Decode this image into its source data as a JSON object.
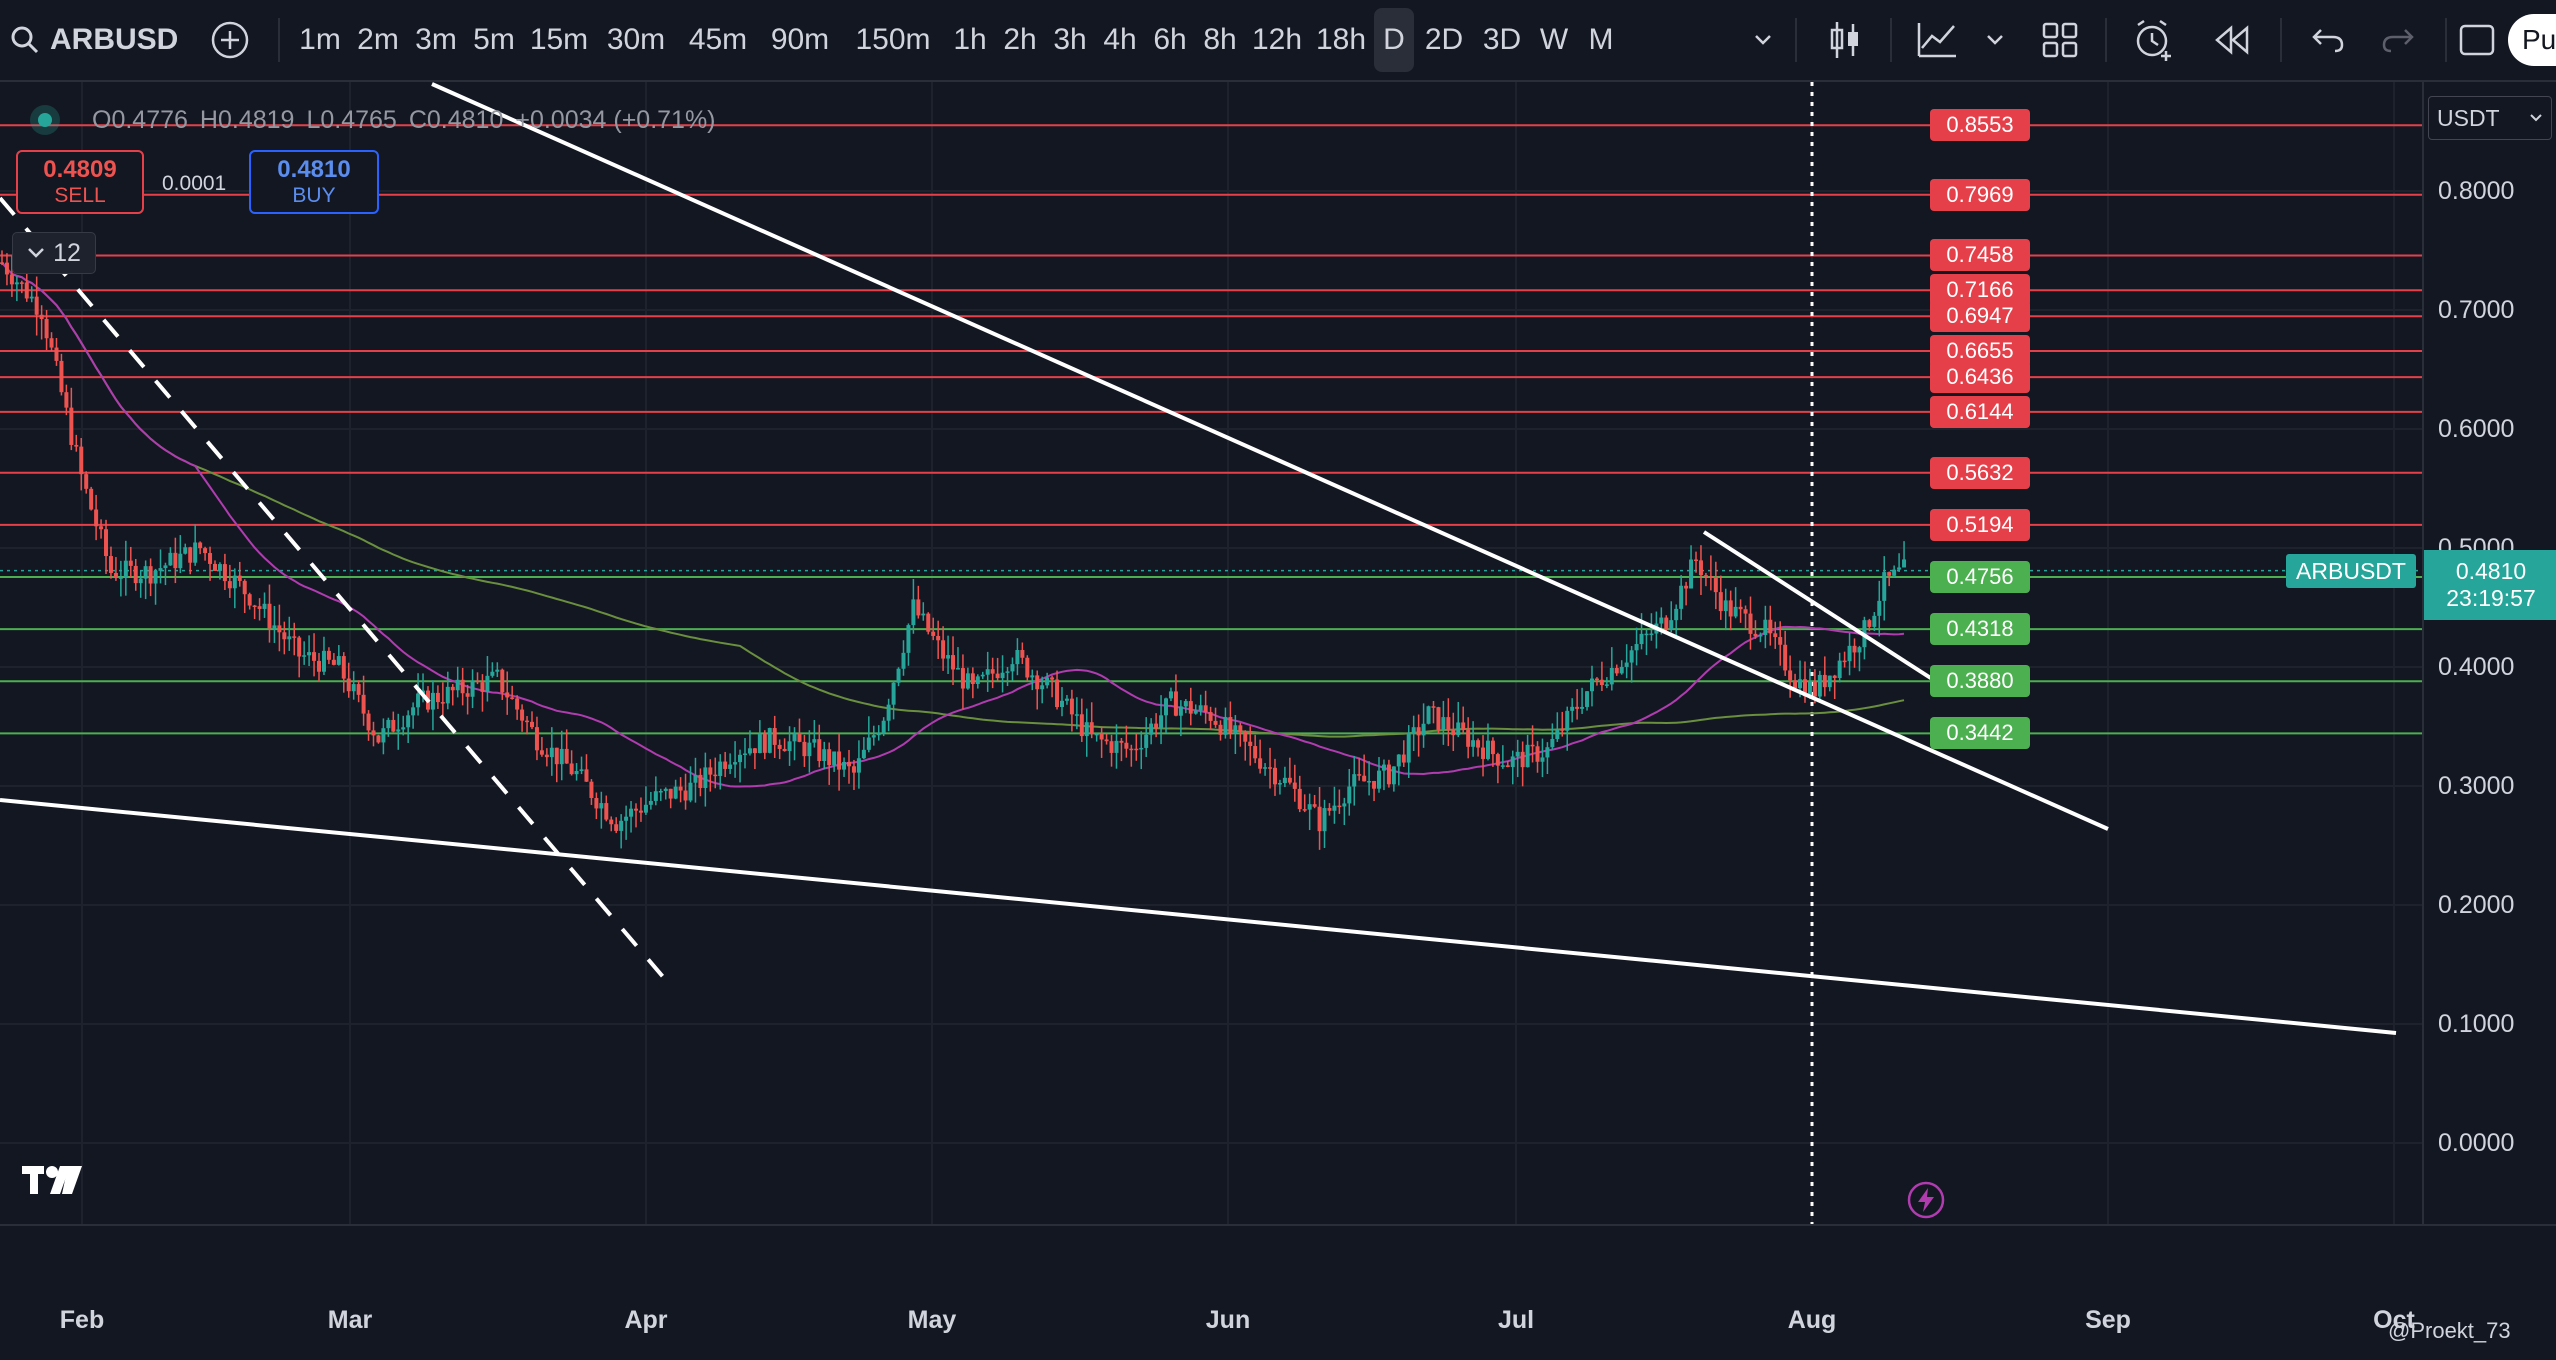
{
  "symbol": {
    "name": "ARBUSD"
  },
  "timeframes": [
    "1m",
    "2m",
    "3m",
    "5m",
    "15m",
    "30m",
    "45m",
    "90m",
    "150m",
    "1h",
    "2h",
    "3h",
    "4h",
    "6h",
    "8h",
    "12h",
    "18h",
    "D",
    "2D",
    "3D",
    "W",
    "M"
  ],
  "active_timeframe": "D",
  "toolbar_partial_button": "Pu",
  "ohlc": {
    "o_label": "O",
    "o": "0.4776",
    "h_label": "H",
    "h": "0.4819",
    "l_label": "L",
    "l": "0.4765",
    "c_label": "C",
    "c": "0.4810",
    "change": "+0.0034 (+0.71%)"
  },
  "trade": {
    "sell_price": "0.4809",
    "sell_label": "SELL",
    "spread": "0.0001",
    "buy_price": "0.4810",
    "buy_label": "BUY"
  },
  "indicator_count": "12",
  "currency_select": "USDT",
  "price_axis": [
    "0.8000",
    "0.7000",
    "0.6000",
    "0.5000",
    "0.4000",
    "0.3000",
    "0.2000",
    "0.1000",
    "0.0000"
  ],
  "resistance_levels": [
    "0.8553",
    "0.7969",
    "0.7458",
    "0.7166",
    "0.6947",
    "0.6655",
    "0.6436",
    "0.6144",
    "0.5632",
    "0.5194"
  ],
  "support_levels": [
    "0.4756",
    "0.4318",
    "0.3880",
    "0.3442"
  ],
  "last_price": {
    "symbol": "ARBUSDT",
    "price": "0.4810",
    "countdown": "23:19:57"
  },
  "months": [
    "Feb",
    "Mar",
    "Apr",
    "May",
    "Jun",
    "Jul",
    "Aug",
    "Sep",
    "Oct"
  ],
  "watermark": "@Proekt_73",
  "logo": "TV",
  "colors": {
    "bg": "#131722",
    "up": "#26a69a",
    "down": "#ef5350",
    "resistance": "#e5404a",
    "support": "#4caf50",
    "ma_green": "#6a8f3f",
    "ma_purple": "#b03cb0",
    "trendline": "#ffffff"
  }
}
